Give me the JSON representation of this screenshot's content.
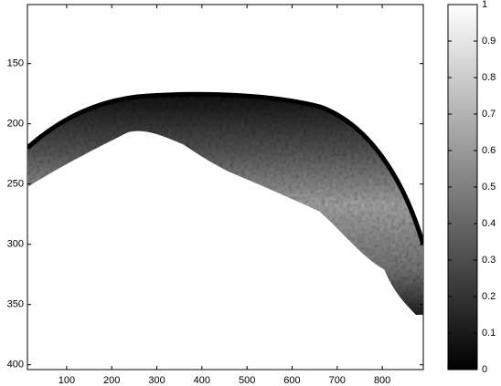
{
  "chart_data": {
    "type": "image",
    "xlim": [
      13,
      891
    ],
    "xticks": [
      100,
      200,
      300,
      400,
      500,
      600,
      700,
      800
    ],
    "ylim": [
      101,
      404
    ],
    "yticks": [
      150,
      200,
      250,
      300,
      350,
      400
    ],
    "y_reversed": true,
    "colorbar": {
      "lim": [
        0,
        1
      ],
      "ticks": [
        0,
        0.1,
        0.2,
        0.3,
        0.4,
        0.5,
        0.6,
        0.7,
        0.8,
        0.9,
        1
      ],
      "colors": [
        "#000000",
        "#ffffff"
      ]
    }
  }
}
